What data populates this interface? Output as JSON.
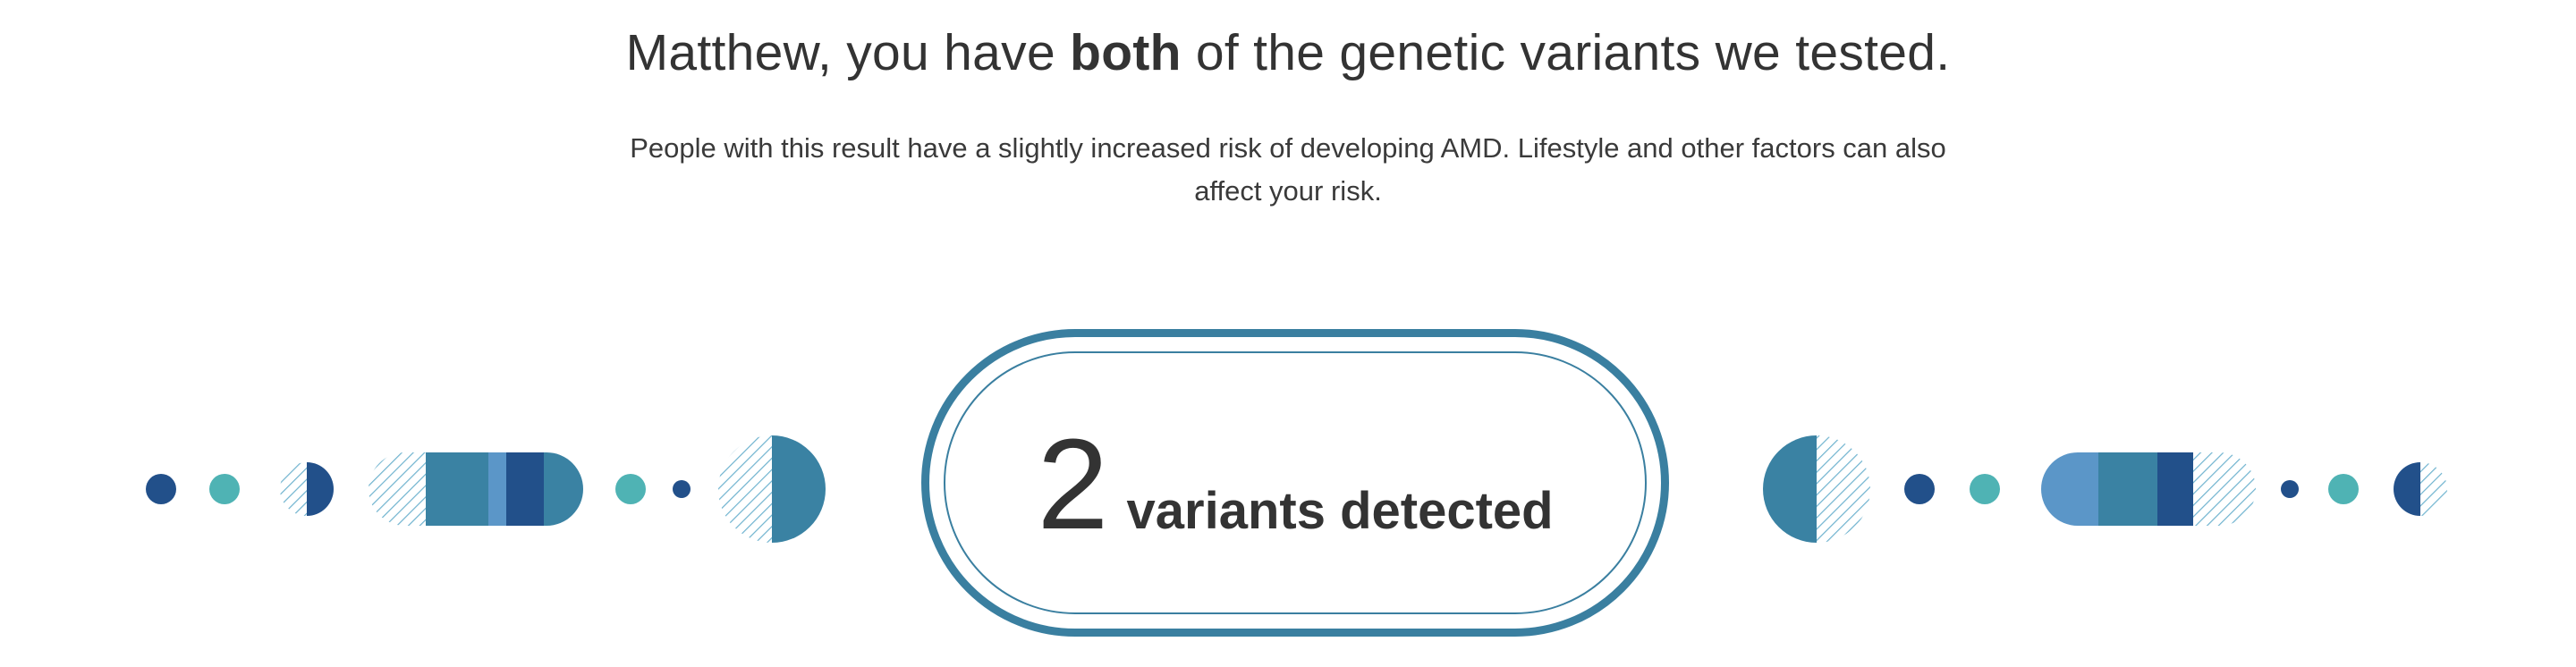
{
  "header": {
    "headline_prefix": "Matthew, you have ",
    "headline_bold": "both",
    "headline_suffix": " of the genetic variants we tested."
  },
  "summary": {
    "description_line1": "People with this result have a slightly increased risk of developing AMD. Lifestyle and other factors can also",
    "description_line2": "affect your risk."
  },
  "result": {
    "count": "2",
    "label": "variants detected"
  },
  "colors": {
    "navy": "#22508a",
    "teal": "#4fb3b4",
    "steel": "#3a82a3",
    "light_blue": "#5b96c8",
    "border": "#3a7fa0"
  }
}
